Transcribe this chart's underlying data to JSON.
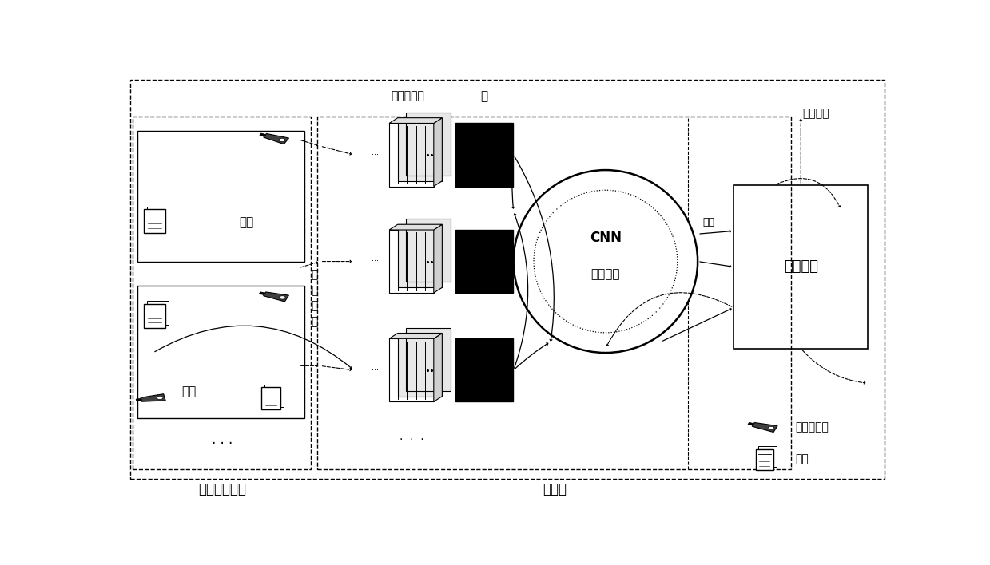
{
  "bg_color": "#ffffff",
  "fig_width": 12.39,
  "fig_height": 7.08,
  "video_module_label": "视频获取模块",
  "server_label": "服务器",
  "room1_label": "室一",
  "room2_label": "室二",
  "transmit_label": "传\n输\n模\n块",
  "video_stream_label": "视频数据流",
  "frame_label": "帧",
  "cnn_line1": "CNN",
  "cnn_line2": "人数统计",
  "renshu_label": "人数",
  "control_label": "控制模块",
  "control_signal_label": "控制信号",
  "infrared_label": "红外摄像头",
  "ac_label": "空调"
}
